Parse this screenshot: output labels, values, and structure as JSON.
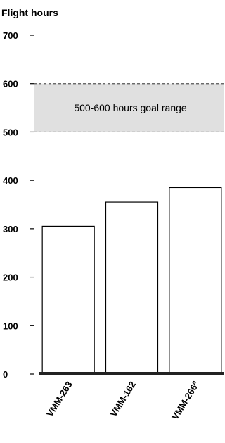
{
  "chart_data": {
    "type": "bar",
    "ylabel": "Flight hours",
    "ylim": [
      0,
      700
    ],
    "yticks": [
      0,
      100,
      200,
      300,
      400,
      500,
      600,
      700
    ],
    "categories": [
      "VMM-263",
      "VMM-162",
      "VMM-266"
    ],
    "category_superscripts": [
      "",
      "",
      "a"
    ],
    "values": [
      305,
      355,
      385
    ],
    "goal_range": {
      "low": 500,
      "high": 600,
      "label": "500-600 hours goal range"
    },
    "grid": false,
    "colors": {
      "bar_fill": "#ffffff",
      "bar_stroke": "#000000",
      "band_fill": "#e0e0e0",
      "baseline": "#222222"
    }
  }
}
